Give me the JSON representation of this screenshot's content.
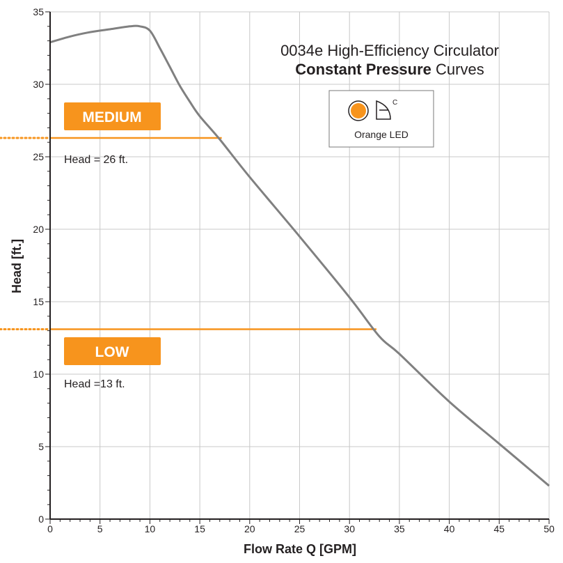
{
  "chart_data": {
    "type": "line",
    "title_line1": "0034e High-Efficiency Circulator",
    "title_line2_bold": "Constant Pressure",
    "title_line2_rest": " Curves",
    "xlabel": "Flow Rate Q [GPM]",
    "ylabel": "Head [ft.]",
    "xlim": [
      0,
      50
    ],
    "ylim": [
      0,
      35
    ],
    "x_ticks": [
      0,
      5,
      10,
      15,
      20,
      25,
      30,
      35,
      40,
      45,
      50
    ],
    "y_ticks": [
      0,
      5,
      10,
      15,
      20,
      25,
      30,
      35
    ],
    "grid": true,
    "colors": {
      "pump_curve": "#808080",
      "setting_line": "#f7941d",
      "badge": "#f7941d",
      "axis": "#231f20",
      "grid": "#c8c8c8"
    },
    "series": [
      {
        "x": [
          0,
          2,
          4,
          6,
          8,
          9,
          10,
          11,
          12,
          13,
          14,
          15,
          17,
          20,
          25,
          30,
          33,
          35,
          40,
          45,
          50
        ],
        "y": [
          32.9,
          33.3,
          33.6,
          33.8,
          34.0,
          34.0,
          33.7,
          32.5,
          31.2,
          29.9,
          28.8,
          27.8,
          26.2,
          23.6,
          19.5,
          15.3,
          12.6,
          11.4,
          8.1,
          5.2,
          2.3
        ]
      }
    ],
    "settings": [
      {
        "label": "MEDIUM",
        "note": "Head = 26 ft.",
        "head": 26.3,
        "x_end": 17.2
      },
      {
        "label": "LOW",
        "note": "Head =13 ft.",
        "head": 13.1,
        "x_end": 32.7
      }
    ],
    "legend": {
      "position": "upper-right",
      "label": "Orange LED",
      "superscript": "C",
      "led_color": "#f7941d"
    }
  }
}
